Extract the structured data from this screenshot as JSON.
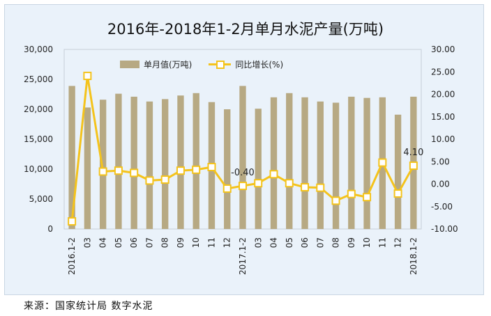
{
  "chart_data": {
    "type": "bar+line",
    "title": "2016年-2018年1-2月单月水泥产量(万吨)",
    "categories": [
      "2016.1-2",
      "03",
      "04",
      "05",
      "06",
      "07",
      "08",
      "09",
      "10",
      "11",
      "12",
      "2017.1-2",
      "03",
      "04",
      "05",
      "06",
      "07",
      "08",
      "09",
      "10",
      "11",
      "12",
      "2018.1-2"
    ],
    "series": [
      {
        "name": "单月值(万吨)",
        "type": "bar",
        "axis": "left",
        "values": [
          23900,
          20300,
          21600,
          22600,
          22100,
          21300,
          21700,
          22300,
          22700,
          21200,
          20000,
          23900,
          20100,
          22000,
          22700,
          22000,
          21300,
          21100,
          22100,
          21900,
          22000,
          19100,
          22100
        ]
      },
      {
        "name": "同比增长(%)",
        "type": "line",
        "axis": "right",
        "values": [
          -8.3,
          24.1,
          2.8,
          3.0,
          2.5,
          0.8,
          1.0,
          3.0,
          3.2,
          3.8,
          -1.0,
          -0.4,
          0.2,
          2.2,
          0.2,
          -0.7,
          -0.8,
          -3.7,
          -2.2,
          -2.9,
          4.8,
          -2.1,
          4.1
        ]
      }
    ],
    "data_labels": [
      {
        "series": 1,
        "index": 11,
        "text": "-0.40"
      },
      {
        "series": 1,
        "index": 22,
        "text": "4.10"
      }
    ],
    "y_left": {
      "min": 0,
      "max": 30000,
      "ticks": [
        0,
        5000,
        10000,
        15000,
        20000,
        25000,
        30000
      ],
      "tick_labels": [
        "0",
        "5,000",
        "10,000",
        "15,000",
        "20,000",
        "25,000",
        "30,000"
      ]
    },
    "y_right": {
      "min": -10,
      "max": 30,
      "ticks": [
        -10,
        -5,
        0,
        5,
        10,
        15,
        20,
        25,
        30
      ],
      "tick_labels": [
        "-10.00",
        "-5.00",
        "0.00",
        "5.00",
        "10.00",
        "15.00",
        "20.00",
        "25.00",
        "30.00"
      ]
    },
    "legend_position": "top",
    "grid": false,
    "colors": {
      "bar": "#b7a983",
      "line": "#f4c31c",
      "marker_fill": "#ffffff"
    }
  },
  "footer": {
    "source": "来源：国家统计局  数字水泥"
  }
}
